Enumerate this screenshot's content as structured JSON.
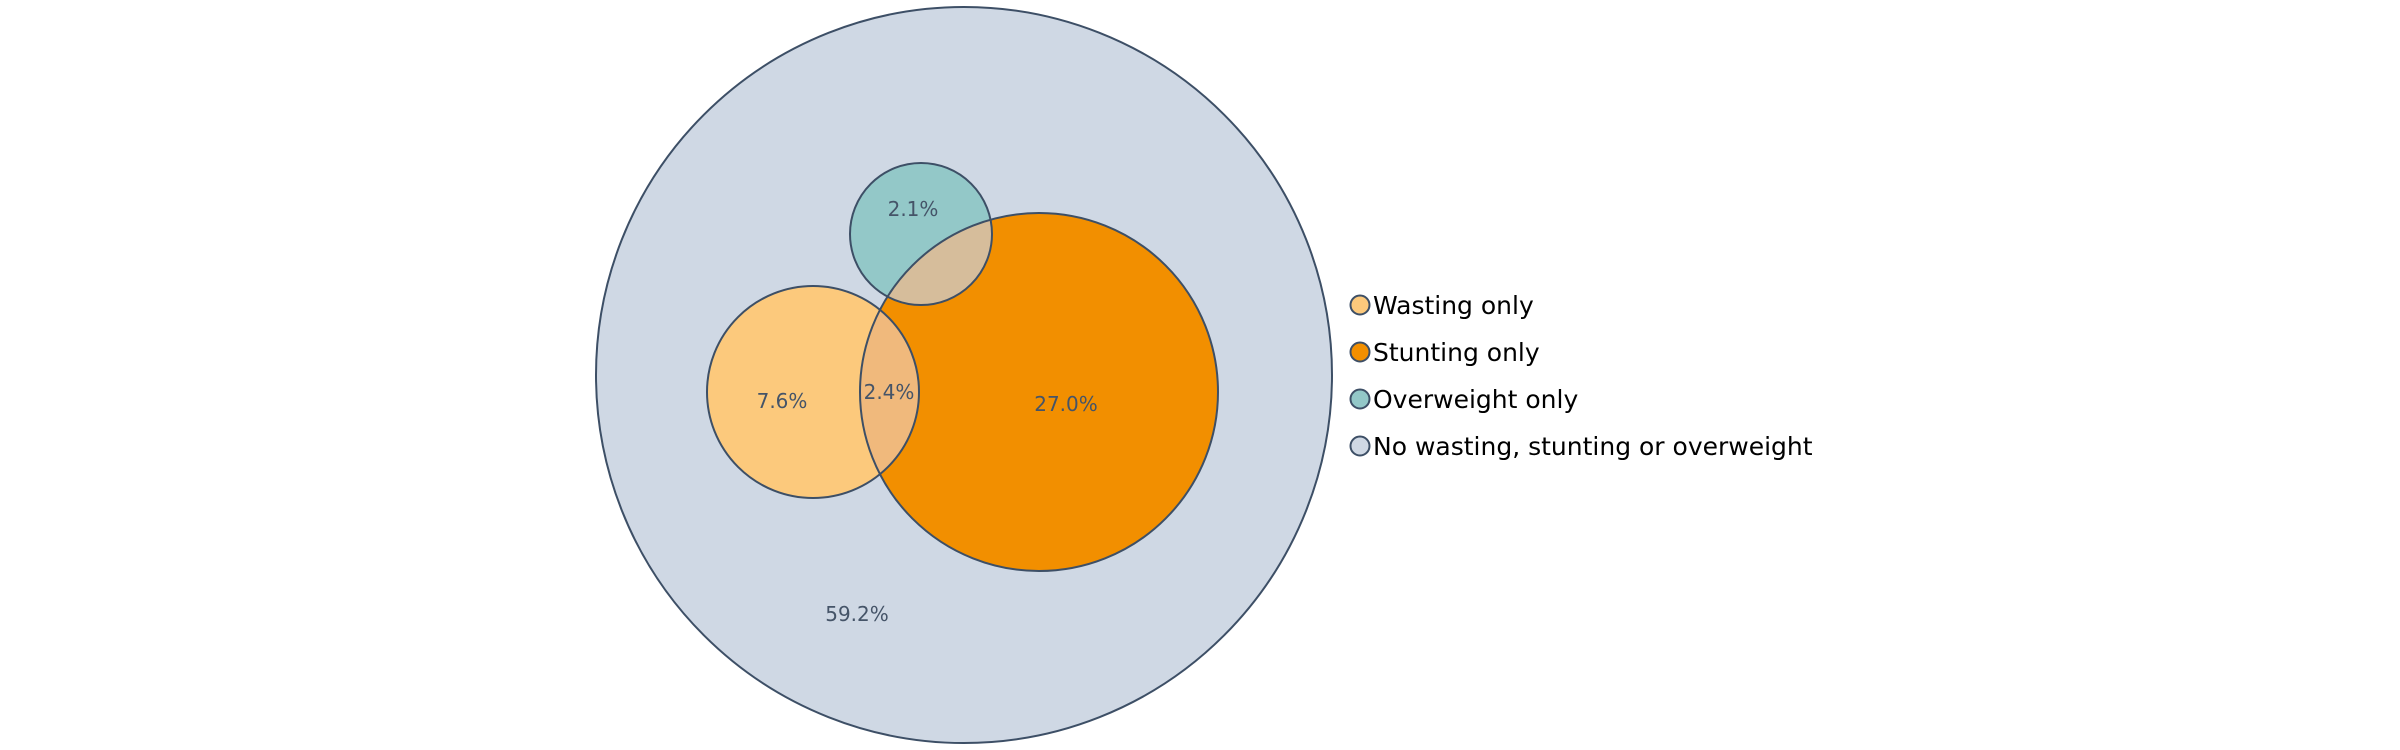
{
  "colors": {
    "outline": "#3d4f66",
    "label_text": "#455468",
    "overlap_stunting_overweight": "#d6bd9b",
    "overlap_wasting_stunting": "#f0b97c"
  },
  "sets": [
    {
      "id": "none",
      "legend": "No wasting, stunting or overweight",
      "color": "#cfd8e4",
      "label": "59.2%"
    },
    {
      "id": "stunting",
      "legend": "Stunting only",
      "color": "#f28f00",
      "label": "27.0%"
    },
    {
      "id": "overweight",
      "legend": "Overweight only",
      "color": "#93c8c8",
      "label": "2.1%"
    },
    {
      "id": "wasting",
      "legend": "Wasting only",
      "color": "#fcc97c",
      "label": "7.6%"
    }
  ],
  "overlaps": [
    {
      "id": "wasting-stunting",
      "label": "2.4%"
    },
    {
      "id": "stunting-overweight",
      "label": ""
    }
  ],
  "legend_order": [
    "wasting",
    "stunting",
    "overweight",
    "none"
  ]
}
